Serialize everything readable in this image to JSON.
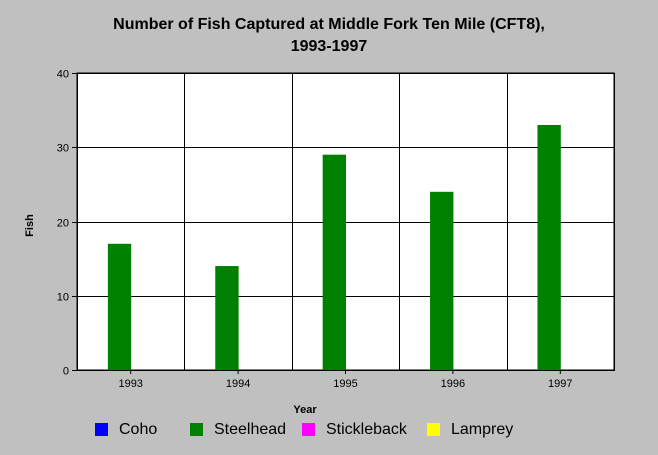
{
  "chart_data": {
    "type": "bar",
    "title_line1": "Number of Fish Captured at Middle Fork Ten Mile (CFT8),",
    "title_line2": "1993-1997",
    "xlabel": "Year",
    "ylabel": "Fish",
    "categories": [
      "1993",
      "1994",
      "1995",
      "1996",
      "1997"
    ],
    "ylim": [
      0,
      40
    ],
    "yticks": [
      0,
      10,
      20,
      30,
      40
    ],
    "grid": true,
    "legend_position": "bottom",
    "series": [
      {
        "name": "Coho",
        "color": "#0000ff",
        "values": [
          0,
          0,
          0,
          0,
          0
        ]
      },
      {
        "name": "Steelhead",
        "color": "#008000",
        "values": [
          17,
          14,
          29,
          24,
          33
        ]
      },
      {
        "name": "Stickleback",
        "color": "#ff00ff",
        "values": [
          0,
          0,
          0,
          0,
          0
        ]
      },
      {
        "name": "Lamprey",
        "color": "#ffff00",
        "values": [
          0,
          0,
          0,
          0,
          0
        ]
      }
    ],
    "colors": {
      "background": "#c0c0c0",
      "plot_background": "#ffffff",
      "grid": "#000000"
    }
  }
}
